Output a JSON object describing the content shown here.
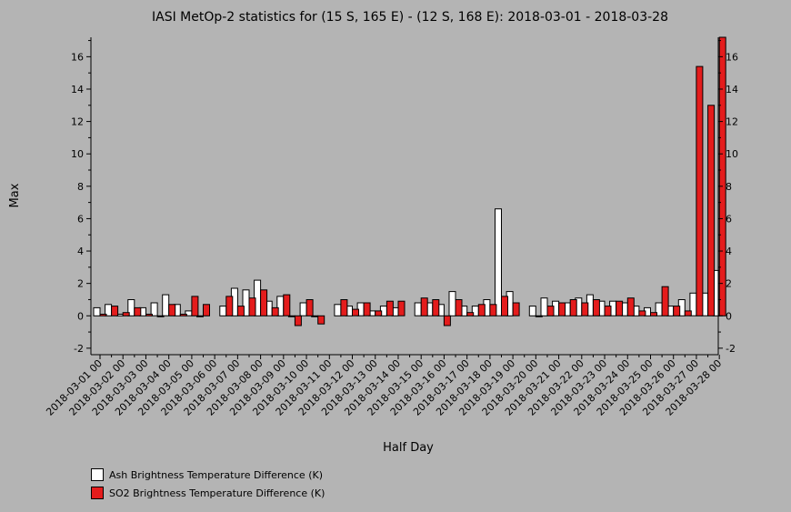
{
  "chart_data": {
    "type": "bar",
    "title": "IASI MetOp-2 statistics for (15 S, 165 E) - (12 S, 168 E): 2018-03-01 - 2018-03-28",
    "xlabel": "Half Day",
    "ylabel": "Max",
    "ylim": [
      -2.4,
      17.2
    ],
    "yticks": [
      -2,
      0,
      2,
      4,
      6,
      8,
      10,
      12,
      14,
      16
    ],
    "grid": false,
    "legend_position": "bottom-left",
    "tick_labels": [
      "2018-03-01 00",
      "2018-03-02 00",
      "2018-03-03 00",
      "2018-03-04 00",
      "2018-03-05 00",
      "2018-03-06 00",
      "2018-03-07 00",
      "2018-03-08 00",
      "2018-03-09 00",
      "2018-03-10 00",
      "2018-03-11 00",
      "2018-03-12 00",
      "2018-03-13 00",
      "2018-03-14 00",
      "2018-03-15 00",
      "2018-03-16 00",
      "2018-03-17 00",
      "2018-03-18 00",
      "2018-03-19 00",
      "2018-03-20 00",
      "2018-03-21 00",
      "2018-03-22 00",
      "2018-03-23 00",
      "2018-03-24 00",
      "2018-03-25 00",
      "2018-03-26 00",
      "2018-03-27 00",
      "2018-03-28 00"
    ],
    "categories": [
      "2018-03-01 00",
      "2018-03-01 12",
      "2018-03-02 00",
      "2018-03-02 12",
      "2018-03-03 00",
      "2018-03-03 12",
      "2018-03-04 00",
      "2018-03-04 12",
      "2018-03-05 00",
      "2018-03-05 12",
      "2018-03-06 00",
      "2018-03-06 12",
      "2018-03-07 00",
      "2018-03-07 12",
      "2018-03-08 00",
      "2018-03-08 12",
      "2018-03-09 00",
      "2018-03-09 12",
      "2018-03-10 00",
      "2018-03-10 12",
      "2018-03-11 00",
      "2018-03-11 12",
      "2018-03-12 00",
      "2018-03-12 12",
      "2018-03-13 00",
      "2018-03-13 12",
      "2018-03-14 00",
      "2018-03-14 12",
      "2018-03-15 00",
      "2018-03-15 12",
      "2018-03-16 00",
      "2018-03-16 12",
      "2018-03-17 00",
      "2018-03-17 12",
      "2018-03-18 00",
      "2018-03-18 12",
      "2018-03-19 00",
      "2018-03-19 12",
      "2018-03-20 00",
      "2018-03-20 12",
      "2018-03-21 00",
      "2018-03-21 12",
      "2018-03-22 00",
      "2018-03-22 12",
      "2018-03-23 00",
      "2018-03-23 12",
      "2018-03-24 00",
      "2018-03-24 12",
      "2018-03-25 00",
      "2018-03-25 12",
      "2018-03-26 00",
      "2018-03-26 12",
      "2018-03-27 00",
      "2018-03-27 12",
      "2018-03-28 00"
    ],
    "series": [
      {
        "name": "Ash Brightness Temperature Difference (K)",
        "color": "#ffffff",
        "values": [
          0.5,
          0.7,
          0.1,
          1.0,
          0.5,
          0.8,
          1.3,
          0.7,
          0.3,
          0.0,
          null,
          0.6,
          1.7,
          1.6,
          2.2,
          0.9,
          1.2,
          0.0,
          0.8,
          0.0,
          null,
          0.7,
          0.6,
          0.8,
          0.3,
          0.6,
          0.5,
          null,
          0.8,
          0.8,
          0.7,
          1.5,
          0.6,
          0.6,
          1.0,
          6.6,
          1.5,
          null,
          0.6,
          1.1,
          0.9,
          0.8,
          1.1,
          1.3,
          0.9,
          0.9,
          0.8,
          0.6,
          0.5,
          0.8,
          0.6,
          1.0,
          1.4,
          1.4,
          2.8
        ]
      },
      {
        "name": "SO2 Brightness Temperature Difference (K)",
        "color": "#e41c1c",
        "values": [
          0.1,
          0.6,
          0.2,
          0.5,
          0.1,
          0.0,
          0.7,
          0.1,
          1.2,
          0.7,
          null,
          1.2,
          0.6,
          1.1,
          1.6,
          0.5,
          1.3,
          -0.6,
          1.0,
          -0.5,
          null,
          1.0,
          0.4,
          0.8,
          0.3,
          0.9,
          0.9,
          null,
          1.1,
          1.0,
          -0.6,
          1.0,
          0.2,
          0.7,
          0.7,
          1.2,
          0.8,
          null,
          0.0,
          0.6,
          0.8,
          1.0,
          0.8,
          1.0,
          0.6,
          0.9,
          1.1,
          0.3,
          0.2,
          1.8,
          0.6,
          0.3,
          15.4,
          13.0,
          17.2
        ]
      }
    ]
  }
}
